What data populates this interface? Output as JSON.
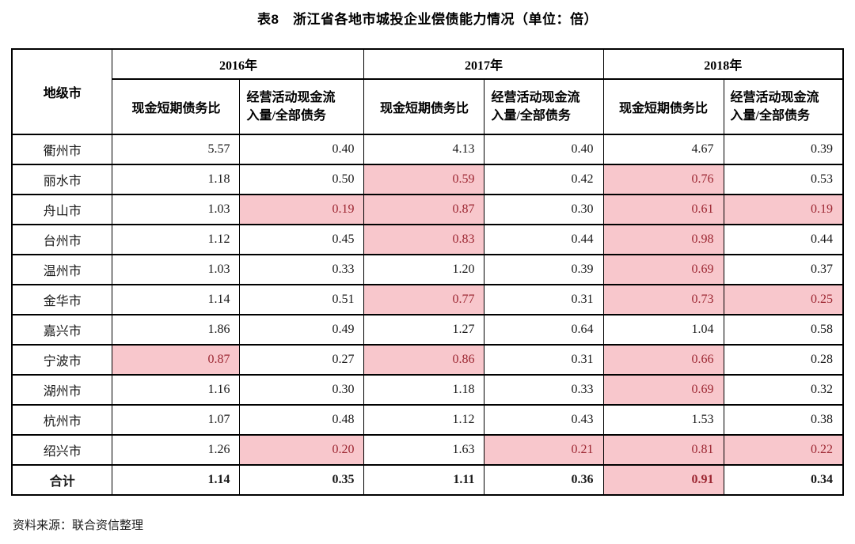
{
  "title": "表8　浙江省各地市城投企业偿债能力情况（单位：倍）",
  "source_note": "资料来源：联合资信整理",
  "colors": {
    "highlight_bg": "#f8c7cc",
    "highlight_text": "#9c2732",
    "border": "#000000"
  },
  "table": {
    "corner_header": "地级市",
    "year_groups": [
      {
        "year": "2016年",
        "sub": [
          "现金短期债务比",
          "经营活动现金流\n入量/全部债务"
        ]
      },
      {
        "year": "2017年",
        "sub": [
          "现金短期债务比",
          "经营活动现金流\n入量/全部债务"
        ]
      },
      {
        "year": "2018年",
        "sub": [
          "现金短期债务比",
          "经营活动现金流\n入量/全部债务"
        ]
      }
    ],
    "rows": [
      {
        "city": "衢州市",
        "values": [
          "5.57",
          "0.40",
          "4.13",
          "0.40",
          "4.67",
          "0.39"
        ],
        "highlight": [
          0,
          0,
          0,
          0,
          0,
          0
        ],
        "total": false
      },
      {
        "city": "丽水市",
        "values": [
          "1.18",
          "0.50",
          "0.59",
          "0.42",
          "0.76",
          "0.53"
        ],
        "highlight": [
          0,
          0,
          1,
          0,
          1,
          0
        ],
        "total": false
      },
      {
        "city": "舟山市",
        "values": [
          "1.03",
          "0.19",
          "0.87",
          "0.30",
          "0.61",
          "0.19"
        ],
        "highlight": [
          0,
          1,
          1,
          0,
          1,
          1
        ],
        "total": false
      },
      {
        "city": "台州市",
        "values": [
          "1.12",
          "0.45",
          "0.83",
          "0.44",
          "0.98",
          "0.44"
        ],
        "highlight": [
          0,
          0,
          1,
          0,
          1,
          0
        ],
        "total": false
      },
      {
        "city": "温州市",
        "values": [
          "1.03",
          "0.33",
          "1.20",
          "0.39",
          "0.69",
          "0.37"
        ],
        "highlight": [
          0,
          0,
          0,
          0,
          1,
          0
        ],
        "total": false
      },
      {
        "city": "金华市",
        "values": [
          "1.14",
          "0.51",
          "0.77",
          "0.31",
          "0.73",
          "0.25"
        ],
        "highlight": [
          0,
          0,
          1,
          0,
          1,
          1
        ],
        "total": false
      },
      {
        "city": "嘉兴市",
        "values": [
          "1.86",
          "0.49",
          "1.27",
          "0.64",
          "1.04",
          "0.58"
        ],
        "highlight": [
          0,
          0,
          0,
          0,
          0,
          0
        ],
        "total": false
      },
      {
        "city": "宁波市",
        "values": [
          "0.87",
          "0.27",
          "0.86",
          "0.31",
          "0.66",
          "0.28"
        ],
        "highlight": [
          1,
          0,
          1,
          0,
          1,
          0
        ],
        "total": false
      },
      {
        "city": "湖州市",
        "values": [
          "1.16",
          "0.30",
          "1.18",
          "0.33",
          "0.69",
          "0.32"
        ],
        "highlight": [
          0,
          0,
          0,
          0,
          1,
          0
        ],
        "total": false
      },
      {
        "city": "杭州市",
        "values": [
          "1.07",
          "0.48",
          "1.12",
          "0.43",
          "1.53",
          "0.38"
        ],
        "highlight": [
          0,
          0,
          0,
          0,
          0,
          0
        ],
        "total": false
      },
      {
        "city": "绍兴市",
        "values": [
          "1.26",
          "0.20",
          "1.63",
          "0.21",
          "0.81",
          "0.22"
        ],
        "highlight": [
          0,
          1,
          0,
          1,
          1,
          1
        ],
        "total": false
      },
      {
        "city": "合计",
        "values": [
          "1.14",
          "0.35",
          "1.11",
          "0.36",
          "0.91",
          "0.34"
        ],
        "highlight": [
          0,
          0,
          0,
          0,
          1,
          0
        ],
        "total": true
      }
    ]
  }
}
